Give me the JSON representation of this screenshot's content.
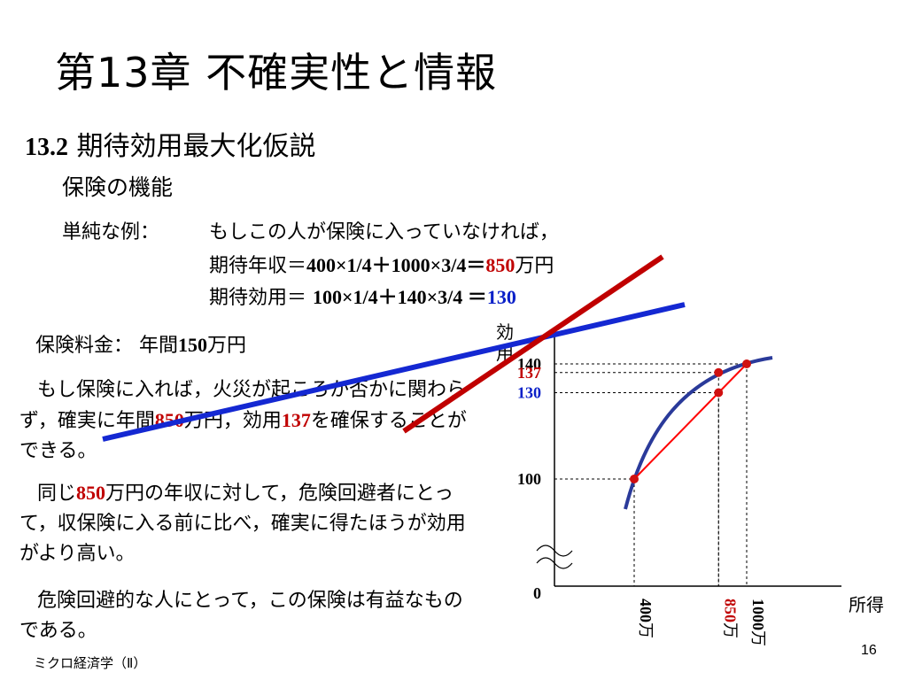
{
  "title": "第13章 不確実性と情報",
  "section": {
    "number": "13.2",
    "text": " 期待効用最大化仮説"
  },
  "subtitle": "保険の機能",
  "example": {
    "label": "単純な例：",
    "line1": "もしこの人が保険に入っていなければ，",
    "line2_pre": "期待年収＝",
    "line2_formula": "400×1/4＋1000×3/4＝",
    "line2_value": "850",
    "line2_unit": "万円",
    "line3_pre": "期待効用＝ ",
    "line3_formula": "100×1/4＋140×3/4 ＝",
    "line3_value": "130"
  },
  "premium": {
    "label": "保険料金：",
    "text_pre": "年間",
    "value": "150",
    "unit": "万円"
  },
  "para1": {
    "a": "もし保険に入れば，火災が起ころか否かに関わらず，確実に年間",
    "b": "850",
    "c": "万円，効用",
    "d": "137",
    "e": "を確保することができる。"
  },
  "para2": {
    "a": "同じ",
    "b": "850",
    "c": "万円の年収に対して，危険回避者にとって，収保険に入る前に比べ，確実に得たほうが効用がより高い。"
  },
  "para3": "危険回避的な人にとって，この保険は有益なものである。",
  "footer": "ミクロ経済学（Ⅱ）",
  "page_number": "16",
  "chart_data": {
    "type": "line",
    "ylabel": "効用",
    "xlabel": "所得",
    "origin_label": "0",
    "y_ticks": [
      {
        "value": 140,
        "label": "140",
        "color": "#000000"
      },
      {
        "value": 137,
        "label": "137",
        "color": "#c00000"
      },
      {
        "value": 130,
        "label": "130",
        "color": "#0a20c8"
      },
      {
        "value": 100,
        "label": "100",
        "color": "#000000"
      }
    ],
    "x_ticks": [
      {
        "value": 400,
        "num": "400",
        "unit": "万",
        "color": "#000000"
      },
      {
        "value": 850,
        "num": "850",
        "unit": "万",
        "color": "#c00000"
      },
      {
        "value": 1000,
        "num": "1000",
        "unit": "万",
        "color": "#000000"
      }
    ],
    "utility_curve_color": "#2a3a9a",
    "chord_color": "#ff0000",
    "points": [
      {
        "x": 400,
        "y": 100
      },
      {
        "x": 850,
        "y": 137
      },
      {
        "x": 850,
        "y": 130
      },
      {
        "x": 1000,
        "y": 140
      }
    ],
    "axis_break": true
  },
  "overlay_colors": {
    "red_line": "#c00000",
    "blue_line": "#1428d2"
  }
}
